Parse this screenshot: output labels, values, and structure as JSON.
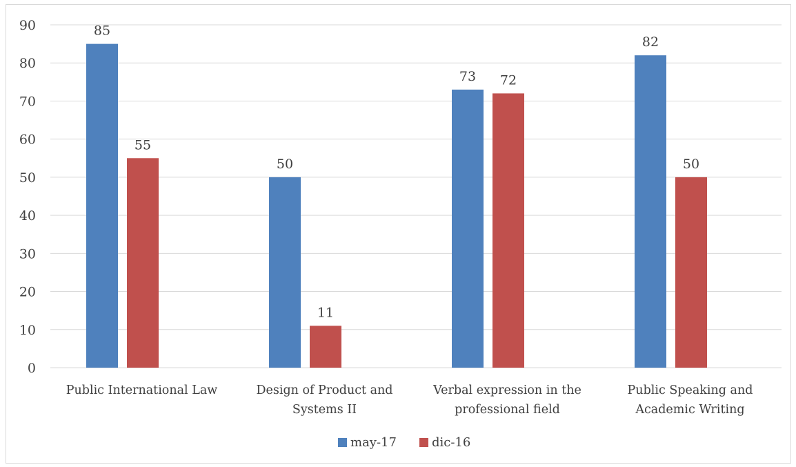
{
  "chart_data": {
    "type": "bar",
    "title": "",
    "xlabel": "",
    "ylabel": "",
    "ylim": [
      0,
      90
    ],
    "yticks": [
      0,
      10,
      20,
      30,
      40,
      50,
      60,
      70,
      80,
      90
    ],
    "grid": true,
    "legend_position": "bottom",
    "categories": [
      [
        "Public International Law"
      ],
      [
        "Design of Product and",
        "Systems II"
      ],
      [
        "Verbal expression in the",
        "professional field"
      ],
      [
        "Public Speaking and",
        "Academic Writing"
      ]
    ],
    "series": [
      {
        "name": "may-17",
        "color": "#4f81bd",
        "values": [
          85,
          50,
          73,
          82
        ]
      },
      {
        "name": "dic-16",
        "color": "#c0504d",
        "values": [
          55,
          11,
          72,
          50
        ]
      }
    ]
  }
}
